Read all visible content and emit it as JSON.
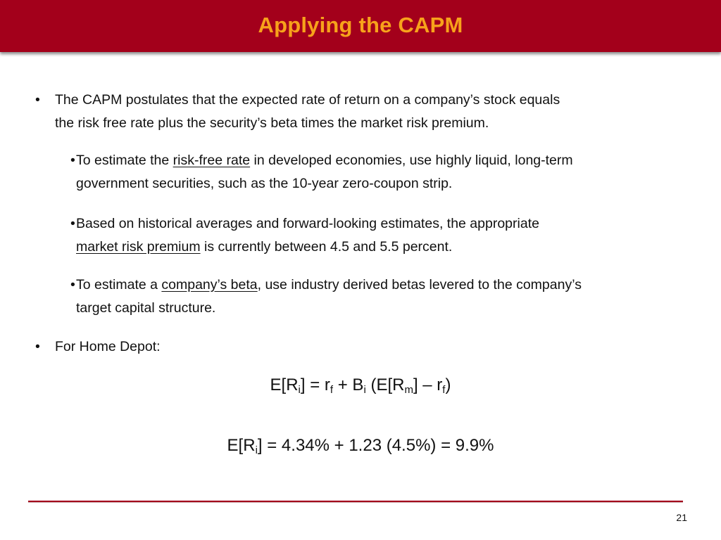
{
  "slide": {
    "title": "Applying the CAPM",
    "page_number": "21"
  },
  "bullet1": {
    "marker": "•",
    "line1": "The CAPM postulates that the expected rate of return on a company’s stock equals",
    "line2": "the risk free rate plus the security’s beta times the market risk premium."
  },
  "sub1": {
    "marker": "•",
    "pre": "To estimate the ",
    "link": "risk-free rate",
    "post": " in developed economies, use highly liquid, long-term",
    "line2": "government securities, such as the 10-year zero-coupon strip."
  },
  "sub2": {
    "marker": "•",
    "line1": "Based on historical averages and forward-looking estimates, the appropriate",
    "link": "market risk premium",
    "post": " is currently between 4.5 and 5.5 percent."
  },
  "sub3": {
    "marker": "•",
    "pre": "To estimate a ",
    "link": "company’s beta",
    "post": ", use industry derived betas levered to the company’s",
    "line2": "target capital structure."
  },
  "bullet2": {
    "marker": "•",
    "text": "For Home Depot:"
  },
  "formula1": {
    "p1": "E[R",
    "s1": "i",
    "p2": "] = r",
    "s2": "f",
    "p3": " + B",
    "s3": "i",
    "p4": " (E[R",
    "s4": "m",
    "p5": "] – r",
    "s5": "f",
    "p6": ")"
  },
  "formula2": {
    "p1": "E[R",
    "s1": "i",
    "p2": "] = 4.34% + 1.23 (4.5%) = 9.9%"
  },
  "colors": {
    "title_bar": "#a3001b",
    "title_text": "#f7a21b"
  }
}
